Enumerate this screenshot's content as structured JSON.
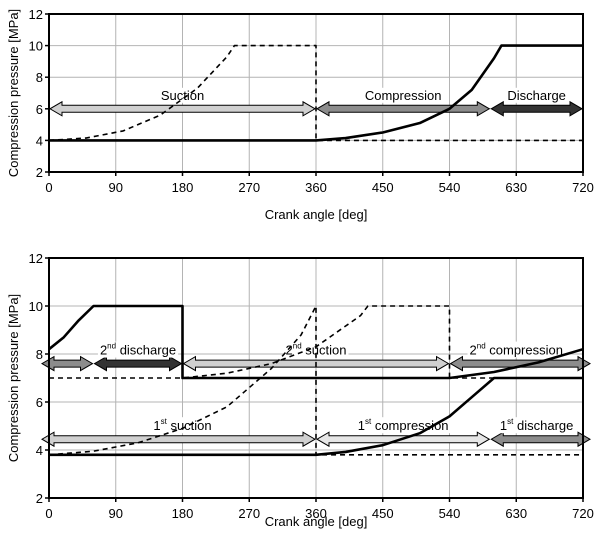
{
  "chart_data": [
    {
      "type": "line",
      "ylabel": "Compression pressure [MPa]",
      "xlabel": "Crank angle [deg]",
      "xlim": [
        0,
        720
      ],
      "ylim": [
        2,
        12
      ],
      "xticks": [
        "0",
        "90",
        "180",
        "270",
        "360",
        "450",
        "540",
        "630",
        "720"
      ],
      "yticks": [
        "2",
        "4",
        "6",
        "8",
        "10",
        "12"
      ],
      "grid": true,
      "series": [
        {
          "style": "solid",
          "x": [
            0,
            360,
            400,
            450,
            500,
            540,
            570,
            600,
            610,
            720
          ],
          "y": [
            4,
            4,
            4.15,
            4.5,
            5.1,
            6,
            7.2,
            9.2,
            10,
            10
          ]
        },
        {
          "style": "dashed",
          "x": [
            0,
            50,
            100,
            150,
            200,
            240,
            250,
            360,
            360,
            720
          ],
          "y": [
            4,
            4.15,
            4.6,
            5.6,
            7.3,
            9.3,
            10,
            10,
            4,
            4
          ]
        }
      ],
      "phases": [
        {
          "label": "Suction",
          "x_start": 0,
          "x_end": 360,
          "fill": "#d0d0d0"
        },
        {
          "label": "Compression",
          "x_start": 360,
          "x_end": 595,
          "fill": "#8c8c8c"
        },
        {
          "label": "Discharge",
          "x_start": 595,
          "x_end": 720,
          "fill": "#333333"
        }
      ],
      "phase_arrow_y": 6
    },
    {
      "type": "line",
      "ylabel": "Compression pressure [MPa]",
      "xlabel": "Crank angle [deg]",
      "xlim": [
        0,
        720
      ],
      "ylim": [
        2,
        12
      ],
      "xticks": [
        "0",
        "90",
        "180",
        "270",
        "360",
        "450",
        "540",
        "630",
        "720"
      ],
      "yticks": [
        "2",
        "4",
        "6",
        "8",
        "10",
        "12"
      ],
      "grid": true,
      "series": [
        {
          "style": "solid",
          "x": [
            0,
            360,
            400,
            450,
            500,
            540,
            570,
            600,
            610,
            720
          ],
          "y": [
            3.8,
            3.8,
            3.92,
            4.2,
            4.7,
            5.4,
            6.2,
            7,
            7,
            7
          ]
        },
        {
          "style": "solid",
          "x": [
            0,
            20,
            40,
            60,
            180,
            180,
            540,
            600,
            660,
            720
          ],
          "y": [
            8.2,
            8.7,
            9.4,
            10,
            10,
            7,
            7,
            7.25,
            7.65,
            8.2
          ]
        },
        {
          "style": "dashed",
          "x": [
            0,
            60,
            120,
            180,
            240,
            300,
            340,
            360,
            360,
            720
          ],
          "y": [
            3.8,
            3.95,
            4.3,
            4.9,
            5.8,
            7.4,
            8.8,
            10,
            3.8,
            3.8
          ]
        },
        {
          "style": "dashed",
          "x": [
            0,
            180,
            240,
            300,
            360,
            420,
            430,
            540,
            540,
            720
          ],
          "y": [
            7,
            7,
            7.2,
            7.6,
            8.3,
            9.6,
            10,
            10,
            7,
            7
          ]
        }
      ],
      "phase_rows": [
        {
          "y": 7.6,
          "phases": [
            {
              "label": "",
              "x_start": 0,
              "x_end": 60,
              "fill": "#8c8c8c"
            },
            {
              "label_sup": "nd",
              "label_num": "2",
              "label_text": " discharge",
              "x_start": 60,
              "x_end": 180,
              "fill": "#333333"
            },
            {
              "label_sup": "nd",
              "label_num": "2",
              "label_text": " suction",
              "x_start": 180,
              "x_end": 540,
              "fill": "#d0d0d0"
            },
            {
              "label_sup": "nd",
              "label_num": "2",
              "label_text": " compression",
              "x_start": 540,
              "x_end": 720,
              "fill": "#8c8c8c"
            }
          ]
        },
        {
          "y": 4.45,
          "phases": [
            {
              "label_sup": "st",
              "label_num": "1",
              "label_text": " suction",
              "x_start": 0,
              "x_end": 360,
              "fill": "#d0d0d0"
            },
            {
              "label_sup": "st",
              "label_num": "1",
              "label_text": " compression",
              "x_start": 360,
              "x_end": 595,
              "fill": "#e6e6e6"
            },
            {
              "label_sup": "st",
              "label_num": "1",
              "label_text": " discharge",
              "x_start": 595,
              "x_end": 720,
              "fill": "#8c8c8c"
            }
          ]
        }
      ]
    }
  ]
}
